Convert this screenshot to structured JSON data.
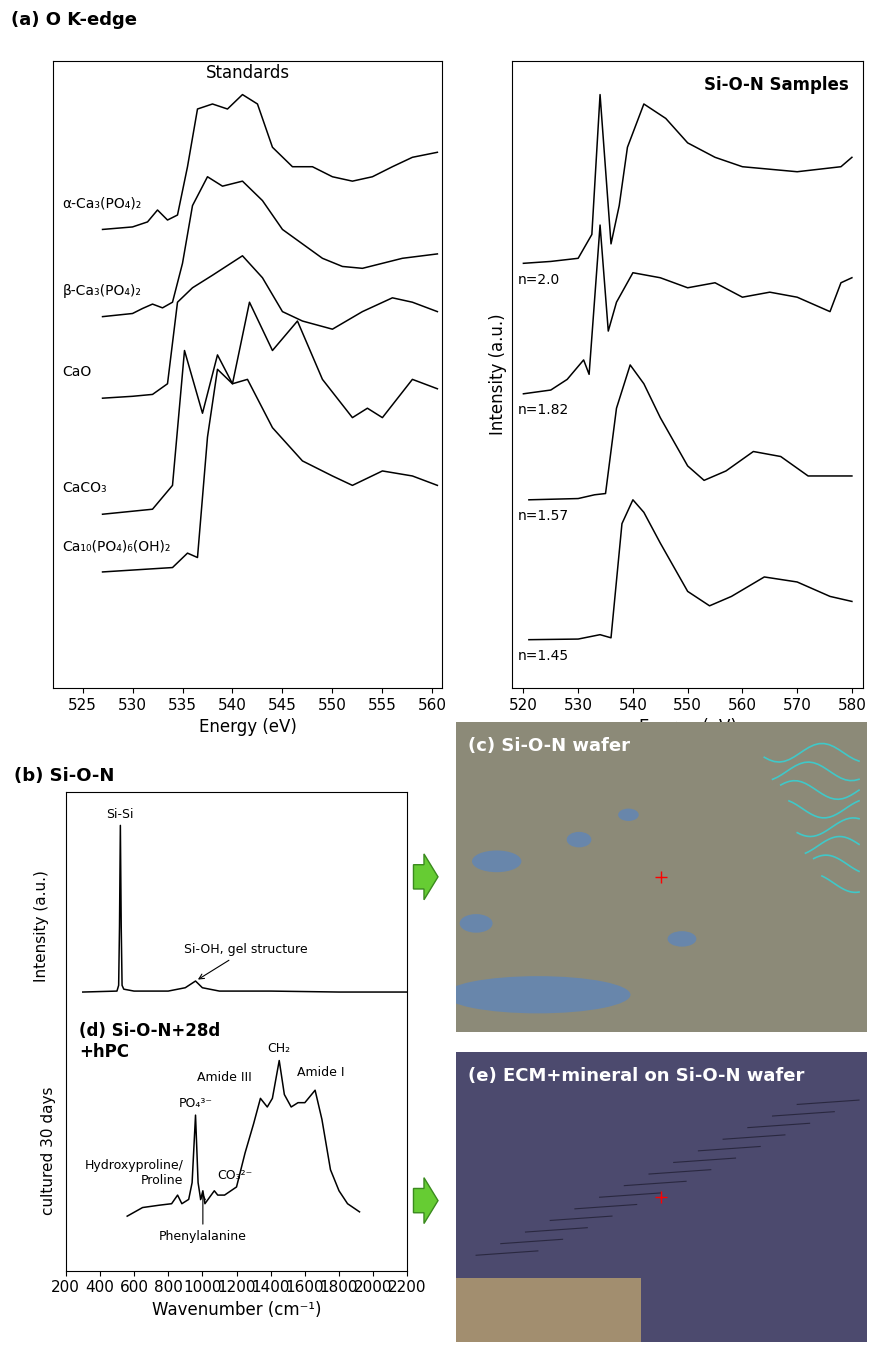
{
  "header": "(a) O K-edge",
  "chart_data": [
    {
      "type": "line",
      "title": "Standards",
      "x_label": "Energy (eV)",
      "xlim": [
        522,
        561
      ],
      "xticks": [
        525,
        530,
        535,
        540,
        545,
        550,
        555,
        560
      ],
      "ylim": [
        0,
        10
      ],
      "tick_labels": "x",
      "series": [
        {
          "name": "α-Ca₃(PO₄)₂",
          "color": "#000000",
          "x": [
            527,
            530,
            531.5,
            532.5,
            533.5,
            534.5,
            535.5,
            536.5,
            538,
            539.5,
            541,
            542.5,
            544,
            546,
            548,
            550,
            552,
            554,
            556,
            558,
            560.5
          ],
          "values": [
            7.31,
            7.35,
            7.43,
            7.62,
            7.46,
            7.54,
            8.31,
            9.23,
            9.31,
            9.23,
            9.46,
            9.31,
            8.62,
            8.31,
            8.31,
            8.15,
            8.08,
            8.15,
            8.31,
            8.46,
            8.54
          ]
        },
        {
          "name": "β-Ca₃(PO₄)₂",
          "color": "#000000",
          "x": [
            527,
            530,
            531,
            532,
            533,
            534,
            535,
            536,
            537.5,
            539,
            541,
            543,
            545,
            547,
            549,
            551,
            553,
            555,
            557,
            560.5
          ],
          "values": [
            5.92,
            5.97,
            6.05,
            6.12,
            6.06,
            6.15,
            6.77,
            7.69,
            8.15,
            8.0,
            8.08,
            7.77,
            7.31,
            7.08,
            6.85,
            6.72,
            6.69,
            6.77,
            6.85,
            6.92
          ]
        },
        {
          "name": "CaO",
          "color": "#000000",
          "x": [
            527,
            530,
            532,
            533.5,
            534.5,
            536,
            538,
            541,
            543,
            545,
            547,
            550,
            553,
            556,
            558,
            560.5
          ],
          "values": [
            4.62,
            4.65,
            4.68,
            4.85,
            6.15,
            6.38,
            6.58,
            6.89,
            6.54,
            6.0,
            5.85,
            5.72,
            6.0,
            6.22,
            6.15,
            6.0
          ]
        },
        {
          "name": "CaCO₃",
          "color": "#000000",
          "x": [
            527,
            532,
            534,
            535.2,
            537,
            538.5,
            540,
            541.7,
            544,
            546.5,
            549,
            552,
            553.5,
            555,
            558,
            560.5
          ],
          "values": [
            2.77,
            2.85,
            3.23,
            5.38,
            4.38,
            5.31,
            4.85,
            6.15,
            5.38,
            5.85,
            4.92,
            4.31,
            4.46,
            4.31,
            4.92,
            4.77
          ]
        },
        {
          "name": "Ca₁₀(PO₄)₆(OH)₂",
          "color": "#000000",
          "x": [
            527,
            534,
            535.5,
            536.5,
            537.5,
            538.5,
            540,
            541.5,
            544,
            547,
            550,
            552,
            555,
            558,
            560.5
          ],
          "values": [
            1.85,
            1.92,
            2.15,
            2.08,
            4.0,
            5.08,
            4.85,
            4.92,
            4.15,
            3.62,
            3.38,
            3.23,
            3.46,
            3.38,
            3.23
          ]
        }
      ]
    },
    {
      "type": "line",
      "title": "Si-O-N Samples",
      "x_label": "Energy (eV)",
      "y_label": "Intensity (a.u.)",
      "xlim": [
        518,
        582
      ],
      "xticks": [
        520,
        530,
        540,
        550,
        560,
        570,
        580
      ],
      "ylim": [
        0,
        10
      ],
      "tick_labels": "x",
      "series": [
        {
          "name": "n=2.0",
          "color": "#000000",
          "x": [
            520,
            525,
            530,
            532.5,
            534,
            536,
            537.5,
            539,
            542,
            546,
            550,
            555,
            560,
            570,
            578,
            580
          ],
          "values": [
            6.77,
            6.8,
            6.85,
            7.23,
            9.46,
            7.08,
            7.69,
            8.62,
            9.31,
            9.08,
            8.69,
            8.46,
            8.31,
            8.23,
            8.31,
            8.46
          ]
        },
        {
          "name": "n=1.82",
          "color": "#000000",
          "x": [
            520,
            525,
            528,
            531,
            532,
            534,
            535.5,
            537,
            540,
            545,
            550,
            555,
            560,
            565,
            570,
            576,
            578,
            580
          ],
          "values": [
            4.69,
            4.75,
            4.92,
            5.23,
            5.0,
            7.38,
            5.69,
            6.15,
            6.62,
            6.54,
            6.38,
            6.46,
            6.23,
            6.31,
            6.23,
            6.0,
            6.46,
            6.54
          ]
        },
        {
          "name": "n=1.57",
          "color": "#000000",
          "x": [
            521,
            530,
            533,
            535,
            537,
            539.5,
            542,
            545,
            550,
            553,
            557,
            562,
            567,
            572,
            580
          ],
          "values": [
            3.0,
            3.02,
            3.08,
            3.1,
            4.46,
            5.15,
            4.85,
            4.31,
            3.54,
            3.31,
            3.46,
            3.77,
            3.69,
            3.38,
            3.38
          ]
        },
        {
          "name": "n=1.45",
          "color": "#000000",
          "x": [
            521,
            530,
            534,
            536,
            538,
            540,
            542,
            545,
            550,
            554,
            558,
            564,
            570,
            576,
            580
          ],
          "values": [
            0.77,
            0.78,
            0.85,
            0.8,
            2.62,
            3.0,
            2.8,
            2.31,
            1.54,
            1.31,
            1.46,
            1.77,
            1.69,
            1.46,
            1.38
          ]
        }
      ]
    },
    {
      "type": "line",
      "title": "(b) Si-O-N",
      "x_label": "Wavenumber (cm⁻¹)",
      "y_label": "Intensity (a.u.)",
      "side_label": "cultured 30 days",
      "xlim": [
        200,
        2200
      ],
      "xticks": [
        200,
        400,
        600,
        800,
        1000,
        1200,
        1400,
        1600,
        1800,
        2000,
        2200
      ],
      "ylim": [
        0,
        10
      ],
      "tick_labels": "x",
      "series": [
        {
          "color": "#000000",
          "x": [
            300,
            500,
            510,
            515,
            520,
            525,
            530,
            540,
            600,
            800,
            900,
            960,
            1000,
            1100,
            1400,
            1800,
            2200
          ],
          "values": [
            5.82,
            5.84,
            5.96,
            7.19,
            9.3,
            7.19,
            5.96,
            5.88,
            5.84,
            5.84,
            5.91,
            6.05,
            5.91,
            5.84,
            5.84,
            5.82,
            5.82
          ]
        },
        {
          "name": "(d) Si-O-N+28d\n+hPC",
          "color": "#000000",
          "x": [
            560,
            650,
            750,
            820,
            855,
            880,
            920,
            940,
            960,
            975,
            990,
            1003,
            1015,
            1070,
            1090,
            1130,
            1200,
            1250,
            1300,
            1340,
            1380,
            1410,
            1450,
            1480,
            1520,
            1560,
            1600,
            1660,
            1700,
            1750,
            1800,
            1850,
            1920
          ],
          "values": [
            1.14,
            1.32,
            1.37,
            1.4,
            1.58,
            1.4,
            1.49,
            1.84,
            3.25,
            1.84,
            1.49,
            1.67,
            1.4,
            1.67,
            1.58,
            1.58,
            1.75,
            2.46,
            3.07,
            3.6,
            3.42,
            3.6,
            4.39,
            3.68,
            3.42,
            3.51,
            3.51,
            3.77,
            3.16,
            2.11,
            1.67,
            1.4,
            1.23
          ]
        }
      ],
      "annotations": [
        {
          "text": "Si-Si",
          "x": 520,
          "series": 0
        },
        {
          "text": "Si-OH, gel structure",
          "x": 960,
          "series": 0
        },
        {
          "text": "Hydroxyproline/\nProline",
          "x": 855,
          "series": 1
        },
        {
          "text": "PO₄³⁻",
          "x": 960,
          "series": 1
        },
        {
          "text": "CO₃²⁻",
          "x": 1070,
          "series": 1
        },
        {
          "text": "Phenylalanine",
          "x": 1003,
          "series": 1
        },
        {
          "text": "Amide III",
          "x": 1340,
          "series": 1
        },
        {
          "text": "CH₂",
          "x": 1450,
          "series": 1
        },
        {
          "text": "Amide I",
          "x": 1660,
          "series": 1
        }
      ]
    }
  ],
  "images": [
    {
      "label": "(c) Si-O-N wafer"
    },
    {
      "label": "(e) ECM+mineral on Si-O-N wafer"
    }
  ]
}
